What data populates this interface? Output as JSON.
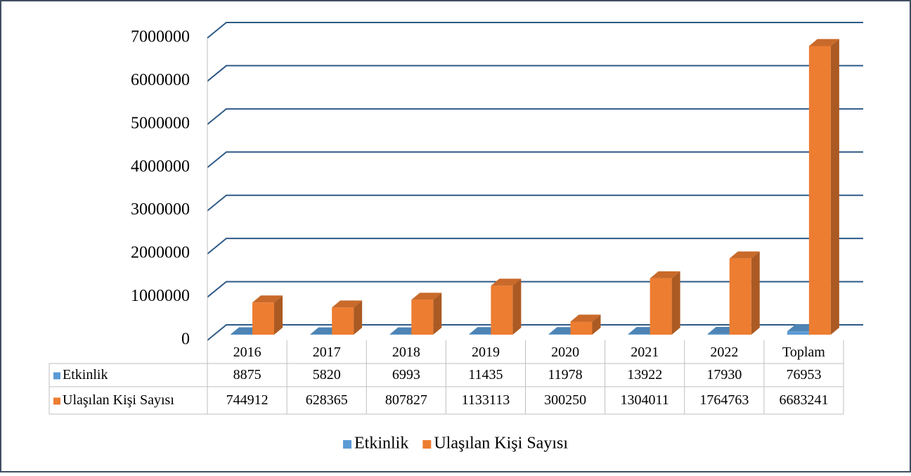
{
  "chart_data": {
    "type": "bar3d",
    "categories": [
      "2016",
      "2017",
      "2018",
      "2019",
      "2020",
      "2021",
      "2022",
      "Toplam"
    ],
    "series": [
      {
        "name": "Etkinlik",
        "color": "#5b9bd5",
        "values": [
          8875,
          5820,
          6993,
          11435,
          11978,
          13922,
          17930,
          76953
        ]
      },
      {
        "name": "Ulaşılan Kişi Sayısı",
        "color": "#ed7d31",
        "values": [
          744912,
          628365,
          807827,
          1133113,
          300250,
          1304011,
          1764763,
          6683241
        ]
      }
    ],
    "ylim": [
      0,
      7000000
    ],
    "yticks": [
      0,
      1000000,
      2000000,
      3000000,
      4000000,
      5000000,
      6000000,
      7000000
    ],
    "grid": true,
    "data_table": true,
    "legend": "bottom"
  }
}
